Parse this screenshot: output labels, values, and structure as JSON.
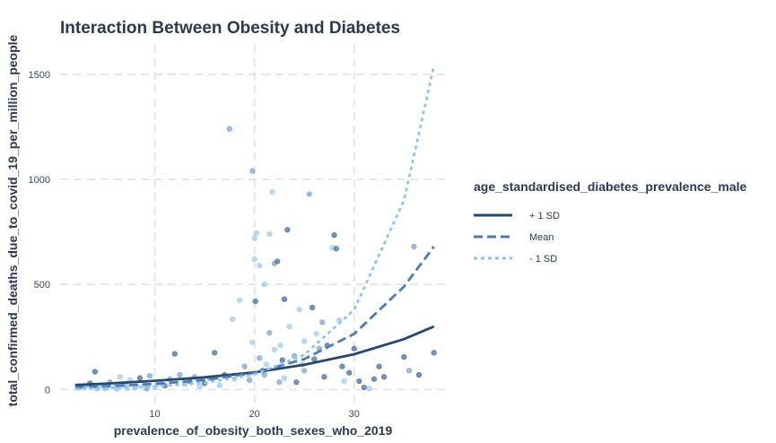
{
  "chart_data": {
    "type": "scatter",
    "title": "Interaction Between Obesity and Diabetes",
    "xlabel": "prevalence_of_obesity_both_sexes_who_2019",
    "ylabel": "total_confirmed_deaths_due_to_covid_19_per_million_people",
    "xlim": [
      0.5,
      39.2
    ],
    "ylim": [
      -75,
      1640
    ],
    "x_ticks": [
      10,
      20,
      30
    ],
    "y_ticks": [
      0,
      500,
      1000,
      1500
    ],
    "grid": true,
    "legend": {
      "title": "age_standardised_diabetes_prevalence_male",
      "placement": "right",
      "entries": [
        {
          "label": "+ 1 SD",
          "color": "#27476e",
          "dash": "solid"
        },
        {
          "label": "Mean",
          "color": "#4d7ab0",
          "dash": "dashed"
        },
        {
          "label": "- 1 SD",
          "color": "#8ec5f0",
          "dash": "dotted"
        }
      ]
    },
    "fit_lines": [
      {
        "name": "+ 1 SD",
        "x": [
          2,
          5,
          10,
          15,
          20,
          25,
          30,
          35,
          38
        ],
        "y": [
          22,
          28,
          42,
          58,
          82,
          118,
          168,
          240,
          300
        ]
      },
      {
        "name": "Mean",
        "x": [
          2,
          5,
          10,
          15,
          20,
          25,
          30,
          35,
          38
        ],
        "y": [
          10,
          15,
          27,
          45,
          80,
          145,
          265,
          490,
          680
        ]
      },
      {
        "name": "- 1 SD",
        "x": [
          2,
          5,
          10,
          15,
          20,
          25,
          30,
          35,
          38
        ],
        "y": [
          3,
          6,
          15,
          32,
          72,
          165,
          380,
          900,
          1540
        ]
      }
    ],
    "points": [
      {
        "x": 2.5,
        "y": 10,
        "g": 2
      },
      {
        "x": 3,
        "y": 15,
        "g": 1
      },
      {
        "x": 3.5,
        "y": 30,
        "g": 0
      },
      {
        "x": 4,
        "y": 85,
        "g": 0
      },
      {
        "x": 4.5,
        "y": 20,
        "g": 2
      },
      {
        "x": 5,
        "y": 5,
        "g": 2
      },
      {
        "x": 5.5,
        "y": 35,
        "g": 1
      },
      {
        "x": 6,
        "y": 12,
        "g": 2
      },
      {
        "x": 6.5,
        "y": 60,
        "g": 2
      },
      {
        "x": 7,
        "y": 20,
        "g": 1
      },
      {
        "x": 7.5,
        "y": 45,
        "g": 2
      },
      {
        "x": 8,
        "y": 8,
        "g": 2
      },
      {
        "x": 8.5,
        "y": 55,
        "g": 0
      },
      {
        "x": 9,
        "y": 25,
        "g": 2
      },
      {
        "x": 9.5,
        "y": 65,
        "g": 1
      },
      {
        "x": 10,
        "y": 10,
        "g": 2
      },
      {
        "x": 10.5,
        "y": 30,
        "g": 2
      },
      {
        "x": 11,
        "y": 18,
        "g": 0
      },
      {
        "x": 4.2,
        "y": 3,
        "g": 2
      },
      {
        "x": 5.2,
        "y": 8,
        "g": 2
      },
      {
        "x": 6.2,
        "y": 2,
        "g": 2
      },
      {
        "x": 7.2,
        "y": 5,
        "g": 2
      },
      {
        "x": 8.2,
        "y": 15,
        "g": 2
      },
      {
        "x": 9.2,
        "y": 4,
        "g": 1
      },
      {
        "x": 11.5,
        "y": 50,
        "g": 1
      },
      {
        "x": 12,
        "y": 170,
        "g": 0
      },
      {
        "x": 12.5,
        "y": 70,
        "g": 1
      },
      {
        "x": 13,
        "y": 25,
        "g": 2
      },
      {
        "x": 13.5,
        "y": 40,
        "g": 0
      },
      {
        "x": 14,
        "y": 60,
        "g": 1
      },
      {
        "x": 14.5,
        "y": 15,
        "g": 2
      },
      {
        "x": 15,
        "y": 30,
        "g": 0
      },
      {
        "x": 15.5,
        "y": 55,
        "g": 1
      },
      {
        "x": 16,
        "y": 175,
        "g": 0
      },
      {
        "x": 16.5,
        "y": 20,
        "g": 2
      },
      {
        "x": 17,
        "y": 70,
        "g": 0
      },
      {
        "x": 17.5,
        "y": 1240,
        "g": 1
      },
      {
        "x": 17.8,
        "y": 335,
        "g": 2
      },
      {
        "x": 18,
        "y": 50,
        "g": 2
      },
      {
        "x": 18.5,
        "y": 425,
        "g": 2
      },
      {
        "x": 19,
        "y": 110,
        "g": 1
      },
      {
        "x": 19.5,
        "y": 45,
        "g": 1
      },
      {
        "x": 19.8,
        "y": 1040,
        "g": 1
      },
      {
        "x": 19.8,
        "y": 225,
        "g": 2
      },
      {
        "x": 20,
        "y": 720,
        "g": 2
      },
      {
        "x": 20,
        "y": 620,
        "g": 2
      },
      {
        "x": 20.1,
        "y": 420,
        "g": 0
      },
      {
        "x": 20.2,
        "y": 745,
        "g": 2
      },
      {
        "x": 20.5,
        "y": 590,
        "g": 2
      },
      {
        "x": 20.5,
        "y": 150,
        "g": 1
      },
      {
        "x": 20.8,
        "y": 90,
        "g": 0
      },
      {
        "x": 21,
        "y": 500,
        "g": 2
      },
      {
        "x": 21,
        "y": 70,
        "g": 1
      },
      {
        "x": 21.2,
        "y": 120,
        "g": 2
      },
      {
        "x": 21.5,
        "y": 740,
        "g": 2
      },
      {
        "x": 21.5,
        "y": 270,
        "g": 1
      },
      {
        "x": 21.8,
        "y": 940,
        "g": 2
      },
      {
        "x": 22,
        "y": 600,
        "g": 1
      },
      {
        "x": 22,
        "y": 190,
        "g": 2
      },
      {
        "x": 22.3,
        "y": 610,
        "g": 0
      },
      {
        "x": 22.5,
        "y": 35,
        "g": 1
      },
      {
        "x": 22.8,
        "y": 140,
        "g": 0
      },
      {
        "x": 23,
        "y": 430,
        "g": 0
      },
      {
        "x": 23,
        "y": 55,
        "g": 2
      },
      {
        "x": 23.3,
        "y": 760,
        "g": 0
      },
      {
        "x": 23.5,
        "y": 300,
        "g": 2
      },
      {
        "x": 24,
        "y": 160,
        "g": 1
      },
      {
        "x": 24.2,
        "y": 35,
        "g": 0
      },
      {
        "x": 24.5,
        "y": 380,
        "g": 2
      },
      {
        "x": 25,
        "y": 230,
        "g": 2
      },
      {
        "x": 25,
        "y": 90,
        "g": 1
      },
      {
        "x": 25.5,
        "y": 930,
        "g": 1
      },
      {
        "x": 25.8,
        "y": 390,
        "g": 0
      },
      {
        "x": 26,
        "y": 145,
        "g": 0
      },
      {
        "x": 26.2,
        "y": 265,
        "g": 2
      },
      {
        "x": 26.5,
        "y": 195,
        "g": 1
      },
      {
        "x": 27,
        "y": 60,
        "g": 0
      },
      {
        "x": 27.3,
        "y": 210,
        "g": 0
      },
      {
        "x": 27.8,
        "y": 675,
        "g": 2
      },
      {
        "x": 28,
        "y": 735,
        "g": 0
      },
      {
        "x": 28.2,
        "y": 670,
        "g": 0
      },
      {
        "x": 28.5,
        "y": 330,
        "g": 2
      },
      {
        "x": 28.8,
        "y": 110,
        "g": 0
      },
      {
        "x": 29,
        "y": 40,
        "g": 2
      },
      {
        "x": 29.5,
        "y": 80,
        "g": 0
      },
      {
        "x": 30,
        "y": 195,
        "g": 0
      },
      {
        "x": 30.5,
        "y": 40,
        "g": 0
      },
      {
        "x": 31,
        "y": 10,
        "g": 0
      },
      {
        "x": 31.5,
        "y": 5,
        "g": 2
      },
      {
        "x": 32,
        "y": 50,
        "g": 0
      },
      {
        "x": 32.5,
        "y": 110,
        "g": 0
      },
      {
        "x": 33,
        "y": 60,
        "g": 0
      },
      {
        "x": 35,
        "y": 155,
        "g": 0
      },
      {
        "x": 35.5,
        "y": 90,
        "g": 1
      },
      {
        "x": 36,
        "y": 680,
        "g": 1
      },
      {
        "x": 36.5,
        "y": 70,
        "g": 0
      },
      {
        "x": 38,
        "y": 175,
        "g": 0
      },
      {
        "x": 24.8,
        "y": 120,
        "g": 2
      },
      {
        "x": 26.8,
        "y": 320,
        "g": 1
      },
      {
        "x": 22.6,
        "y": 210,
        "g": 2
      }
    ],
    "point_colors": [
      "#3f6a9a",
      "#79a4cf",
      "#9ccbee"
    ]
  }
}
